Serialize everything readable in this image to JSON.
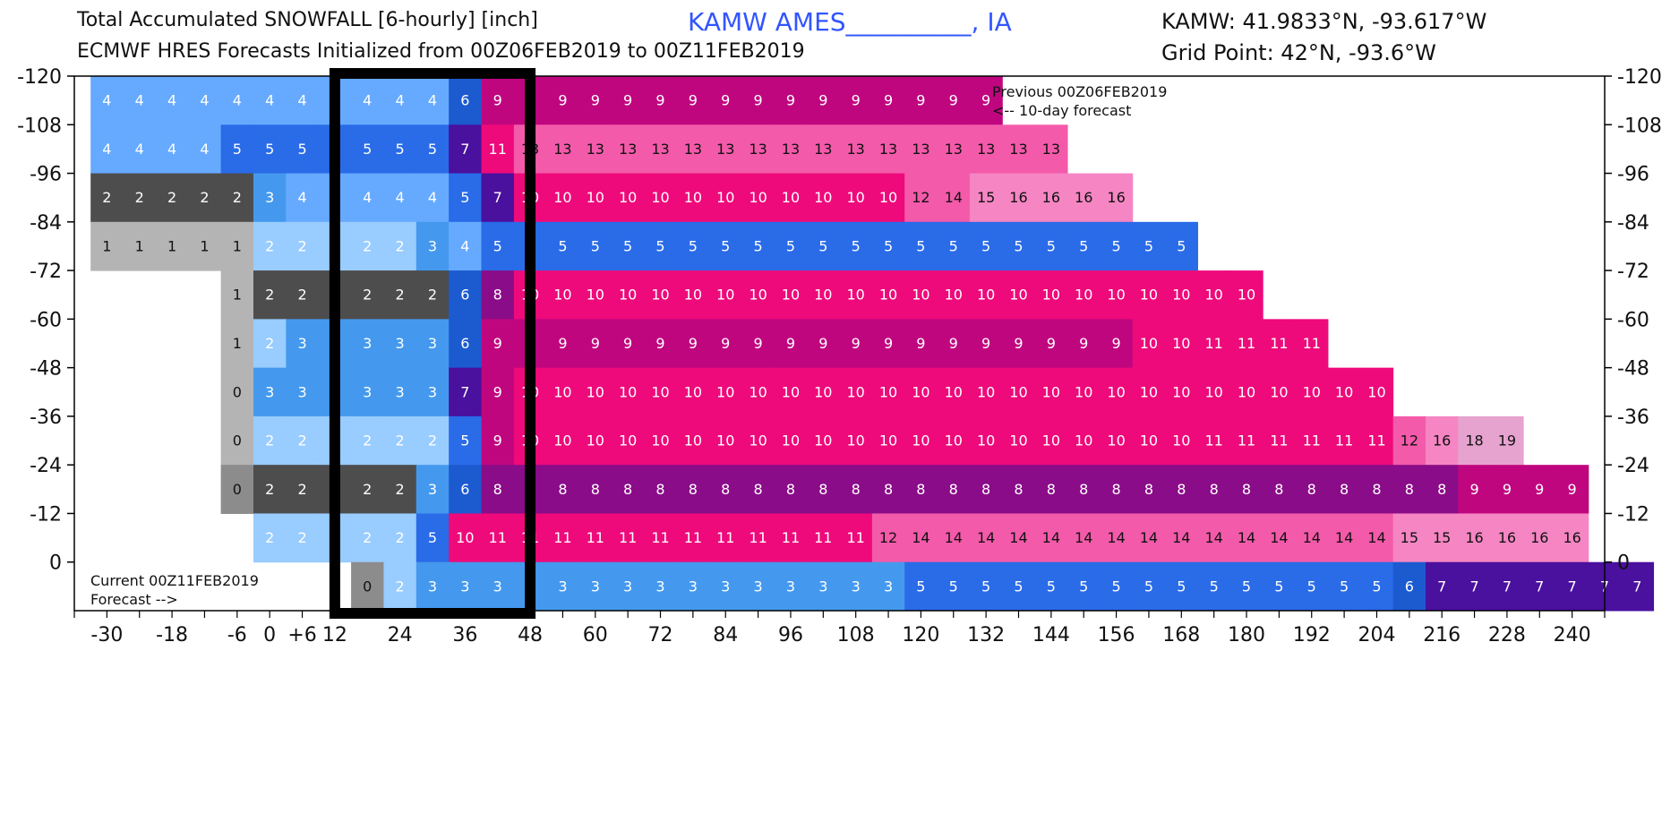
{
  "header": {
    "title_line1": "Total Accumulated SNOWFALL [6-hourly] [inch]",
    "title_line2": "ECMWF HRES Forecasts Initialized from 00Z06FEB2019 to 00Z11FEB2019",
    "location": "KAMW AMES__________, IA",
    "coord_line1": "KAMW: 41.9833°N, -93.617°W",
    "coord_line2": "Grid Point: 42°N, -93.6°W"
  },
  "annotations": {
    "previous_line1": "Previous 00Z06FEB2019",
    "previous_line2": "<-- 10-day forecast",
    "current_line1": "Current 00Z11FEB2019",
    "current_line2": "Forecast -->"
  },
  "colors": {
    "gray_light": "#b4b4b4",
    "gray_mid": "#8c8c8c",
    "gray_dark": "#4d4d4d",
    "blue_pale": "#99ccff",
    "blue_light": "#66aaff",
    "blue_mid": "#4499ee",
    "blue_bright": "#2a6be8",
    "blue_deep": "#1c5ad0",
    "indigo": "#4a109e",
    "purple": "#8a0c88",
    "magenta": "#c0067f",
    "pink_hot": "#ee0a7a",
    "pink_mid": "#f45aaa",
    "pink_light": "#f586c3",
    "pink_pale": "#e6a3cf",
    "highlight_box": "#000000"
  },
  "chart_data": {
    "type": "heatmap",
    "xlabel": "",
    "ylabel": "",
    "x_ticks": [
      "-30",
      "-18",
      "-6",
      "0",
      "+6",
      "12",
      "24",
      "36",
      "48",
      "60",
      "72",
      "84",
      "96",
      "108",
      "120",
      "132",
      "144",
      "156",
      "168",
      "180",
      "192",
      "204",
      "216",
      "228",
      "240"
    ],
    "y_ticks": [
      "-120",
      "-108",
      "-96",
      "-84",
      "-72",
      "-60",
      "-48",
      "-36",
      "-24",
      "-12",
      "0"
    ],
    "highlight_box": {
      "from_hour": 12,
      "to_hour": 48
    },
    "rows": [
      {
        "init_offset": -120,
        "start_hour": -30,
        "values": [
          4,
          4,
          4,
          4,
          4,
          4,
          4,
          4,
          4,
          4,
          4,
          6,
          9,
          9,
          9,
          9,
          9,
          9,
          9,
          9,
          9,
          9,
          9,
          9,
          9,
          9,
          9,
          9
        ]
      },
      {
        "init_offset": -108,
        "start_hour": -30,
        "values": [
          4,
          4,
          4,
          4,
          5,
          5,
          5,
          5,
          5,
          5,
          5,
          7,
          11,
          13,
          13,
          13,
          13,
          13,
          13,
          13,
          13,
          13,
          13,
          13,
          13,
          13,
          13,
          13,
          13,
          13
        ]
      },
      {
        "init_offset": -96,
        "start_hour": -30,
        "values": [
          2,
          2,
          2,
          2,
          2,
          3,
          4,
          4,
          4,
          4,
          4,
          5,
          7,
          10,
          10,
          10,
          10,
          10,
          10,
          10,
          10,
          10,
          10,
          10,
          10,
          12,
          14,
          15,
          16,
          16,
          16,
          16
        ]
      },
      {
        "init_offset": -84,
        "start_hour": -30,
        "values": [
          1,
          1,
          1,
          1,
          1,
          2,
          2,
          2,
          2,
          2,
          3,
          4,
          5,
          5,
          5,
          5,
          5,
          5,
          5,
          5,
          5,
          5,
          5,
          5,
          5,
          5,
          5,
          5,
          5,
          5,
          5,
          5,
          5,
          5
        ]
      },
      {
        "init_offset": -72,
        "start_hour": -6,
        "values": [
          1,
          2,
          2,
          2,
          2,
          2,
          2,
          6,
          8,
          10,
          10,
          10,
          10,
          10,
          10,
          10,
          10,
          10,
          10,
          10,
          10,
          10,
          10,
          10,
          10,
          10,
          10,
          10,
          10,
          10,
          10,
          10
        ]
      },
      {
        "init_offset": -60,
        "start_hour": -6,
        "values": [
          1,
          2,
          3,
          3,
          3,
          3,
          3,
          6,
          9,
          9,
          9,
          9,
          9,
          9,
          9,
          9,
          9,
          9,
          9,
          9,
          9,
          9,
          9,
          9,
          9,
          9,
          9,
          9,
          10,
          10,
          11,
          11,
          11,
          11
        ]
      },
      {
        "init_offset": -48,
        "start_hour": -6,
        "values": [
          0,
          3,
          3,
          3,
          3,
          3,
          3,
          7,
          9,
          10,
          10,
          10,
          10,
          10,
          10,
          10,
          10,
          10,
          10,
          10,
          10,
          10,
          10,
          10,
          10,
          10,
          10,
          10,
          10,
          10,
          10,
          10,
          10,
          10,
          10,
          10
        ]
      },
      {
        "init_offset": -36,
        "start_hour": -6,
        "values": [
          0,
          2,
          2,
          2,
          2,
          2,
          2,
          5,
          9,
          10,
          10,
          10,
          10,
          10,
          10,
          10,
          10,
          10,
          10,
          10,
          10,
          10,
          10,
          10,
          10,
          10,
          10,
          10,
          10,
          10,
          11,
          11,
          11,
          11,
          11,
          11,
          12,
          16,
          18,
          19
        ]
      },
      {
        "init_offset": -24,
        "start_hour": -6,
        "values": [
          0,
          2,
          2,
          2,
          2,
          2,
          3,
          6,
          8,
          8,
          8,
          8,
          8,
          8,
          8,
          8,
          8,
          8,
          8,
          8,
          8,
          8,
          8,
          8,
          8,
          8,
          8,
          8,
          8,
          8,
          8,
          8,
          8,
          8,
          8,
          8,
          8,
          8,
          9,
          9,
          9,
          9
        ]
      },
      {
        "init_offset": -12,
        "start_hour": 0,
        "values": [
          2,
          2,
          2,
          2,
          2,
          5,
          10,
          11,
          11,
          11,
          11,
          11,
          11,
          11,
          11,
          11,
          11,
          11,
          11,
          12,
          14,
          14,
          14,
          14,
          14,
          14,
          14,
          14,
          14,
          14,
          14,
          14,
          14,
          14,
          14,
          15,
          15,
          16,
          16,
          16,
          16
        ]
      },
      {
        "init_offset": 0,
        "start_hour": 18,
        "values": [
          0,
          2,
          3,
          3,
          3,
          3,
          3,
          3,
          3,
          3,
          3,
          3,
          3,
          3,
          3,
          3,
          3,
          5,
          5,
          5,
          5,
          5,
          5,
          5,
          5,
          5,
          5,
          5,
          5,
          5,
          5,
          5,
          6,
          7,
          7,
          7,
          7,
          7,
          7,
          7
        ]
      }
    ]
  }
}
